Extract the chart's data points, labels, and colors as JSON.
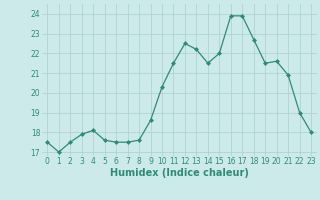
{
  "x": [
    0,
    1,
    2,
    3,
    4,
    5,
    6,
    7,
    8,
    9,
    10,
    11,
    12,
    13,
    14,
    15,
    16,
    17,
    18,
    19,
    20,
    21,
    22,
    23
  ],
  "y": [
    17.5,
    17.0,
    17.5,
    17.9,
    18.1,
    17.6,
    17.5,
    17.5,
    17.6,
    18.6,
    20.3,
    21.5,
    22.5,
    22.2,
    21.5,
    22.0,
    23.9,
    23.9,
    22.7,
    21.5,
    21.6,
    20.9,
    19.0,
    18.0
  ],
  "line_color": "#2e8b7a",
  "marker": "D",
  "marker_size": 2.0,
  "bg_color": "#cceaea",
  "grid_color": "#aacece",
  "xlabel": "Humidex (Indice chaleur)",
  "ylim": [
    16.8,
    24.5
  ],
  "xlim": [
    -0.5,
    23.5
  ],
  "yticks": [
    17,
    18,
    19,
    20,
    21,
    22,
    23,
    24
  ],
  "xticks": [
    0,
    1,
    2,
    3,
    4,
    5,
    6,
    7,
    8,
    9,
    10,
    11,
    12,
    13,
    14,
    15,
    16,
    17,
    18,
    19,
    20,
    21,
    22,
    23
  ],
  "tick_fontsize": 5.5,
  "xlabel_fontsize": 7.0
}
